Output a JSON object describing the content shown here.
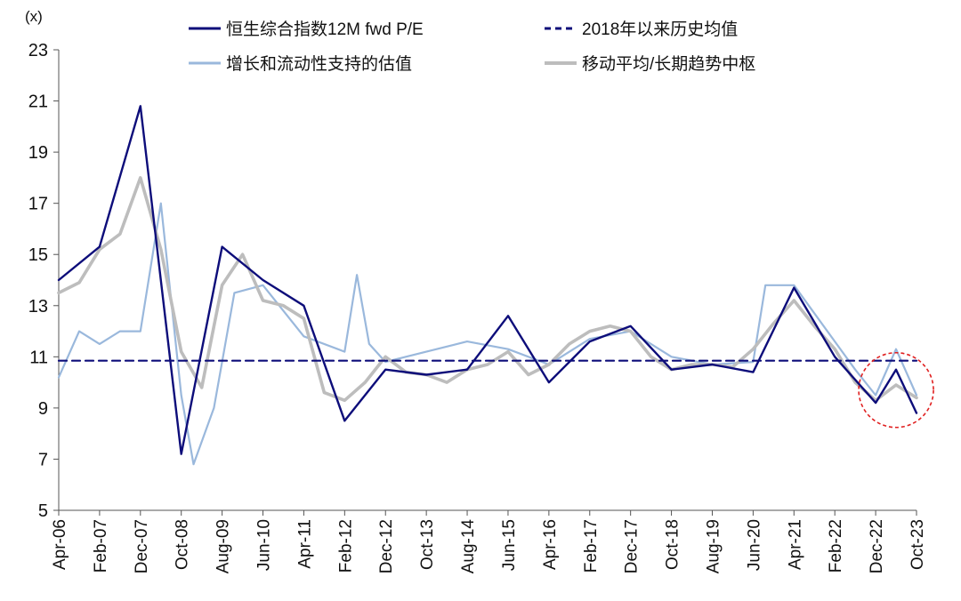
{
  "chart_data": {
    "type": "line",
    "title": "",
    "y_unit_label": "(x)",
    "ylim": [
      5,
      23
    ],
    "y_ticks": [
      "5",
      "7",
      "9",
      "11",
      "13",
      "15",
      "17",
      "19",
      "21",
      "23"
    ],
    "x_ticks": [
      "Apr-06",
      "Feb-07",
      "Dec-07",
      "Oct-08",
      "Aug-09",
      "Jun-10",
      "Apr-11",
      "Feb-12",
      "Dec-12",
      "Oct-13",
      "Aug-14",
      "Jun-15",
      "Apr-16",
      "Feb-17",
      "Dec-17",
      "Oct-18",
      "Aug-19",
      "Jun-20",
      "Apr-21",
      "Feb-22",
      "Dec-22",
      "Oct-23"
    ],
    "legend_position": "top",
    "colors": {
      "pe": "#0d0d7a",
      "mean": "#0d0d7a",
      "support": "#9ab8dc",
      "trend": "#bdbdbd",
      "highlight": "#e02020"
    },
    "series": [
      {
        "key": "pe",
        "name": "恒生综合指数12M fwd P/E",
        "style": "solid",
        "x": [
          0,
          1,
          2,
          3,
          4,
          5,
          6,
          7,
          8,
          9,
          10,
          11,
          12,
          13,
          14,
          15,
          16,
          17,
          18,
          19,
          20,
          20.5,
          21
        ],
        "y": [
          14.0,
          15.3,
          20.8,
          7.2,
          15.3,
          14.0,
          13.0,
          8.5,
          10.5,
          10.3,
          10.5,
          12.6,
          10.0,
          11.6,
          12.2,
          10.5,
          10.7,
          10.4,
          13.7,
          11.0,
          9.2,
          10.5,
          8.8
        ]
      },
      {
        "key": "mean",
        "name": "2018年以来历史均值",
        "style": "dashed",
        "x": [
          0,
          21
        ],
        "y": [
          10.85,
          10.85
        ]
      },
      {
        "key": "support",
        "name": "增长和流动性支持的估值",
        "style": "solid",
        "x": [
          0,
          0.5,
          1,
          1.5,
          2,
          2.5,
          3,
          3.3,
          3.8,
          4.3,
          5,
          6,
          7,
          7.3,
          7.6,
          8,
          9,
          10,
          11,
          12,
          13,
          14,
          15,
          16,
          17,
          17.3,
          18,
          19,
          19.5,
          20,
          20.5,
          21
        ],
        "y": [
          10.2,
          12.0,
          11.5,
          12.0,
          12.0,
          17.0,
          9.5,
          6.8,
          9.0,
          13.5,
          13.8,
          11.8,
          11.2,
          14.2,
          11.5,
          10.8,
          11.2,
          11.6,
          11.3,
          10.7,
          11.7,
          12.0,
          11.0,
          10.7,
          10.8,
          13.8,
          13.8,
          11.6,
          10.5,
          9.5,
          11.3,
          9.5
        ]
      },
      {
        "key": "trend",
        "name": "移动平均/长期趋势中枢",
        "style": "solid",
        "x": [
          0,
          0.5,
          1,
          1.5,
          2,
          2.5,
          3,
          3.5,
          4,
          4.5,
          5,
          5.5,
          6,
          6.5,
          7,
          7.5,
          8,
          8.5,
          9,
          9.5,
          10,
          10.5,
          11,
          11.5,
          12,
          12.5,
          13,
          13.5,
          14,
          14.5,
          15,
          15.5,
          16,
          16.5,
          17,
          17.5,
          18,
          18.5,
          19,
          19.5,
          20,
          20.5,
          21
        ],
        "y": [
          13.5,
          13.9,
          15.2,
          15.8,
          18.0,
          15.2,
          11.2,
          9.8,
          13.8,
          15.0,
          13.2,
          13.0,
          12.5,
          9.6,
          9.3,
          10.0,
          11.0,
          10.4,
          10.3,
          10.0,
          10.5,
          10.7,
          11.2,
          10.3,
          10.7,
          11.5,
          12.0,
          12.2,
          12.0,
          11.0,
          10.5,
          10.7,
          10.7,
          10.6,
          11.3,
          12.3,
          13.2,
          12.2,
          11.3,
          10.0,
          9.3,
          9.9,
          9.4
        ]
      }
    ],
    "annotations": [
      {
        "type": "circle",
        "style": "dashed",
        "label": "",
        "center_x": 20.5,
        "center_y": 9.7
      }
    ]
  }
}
